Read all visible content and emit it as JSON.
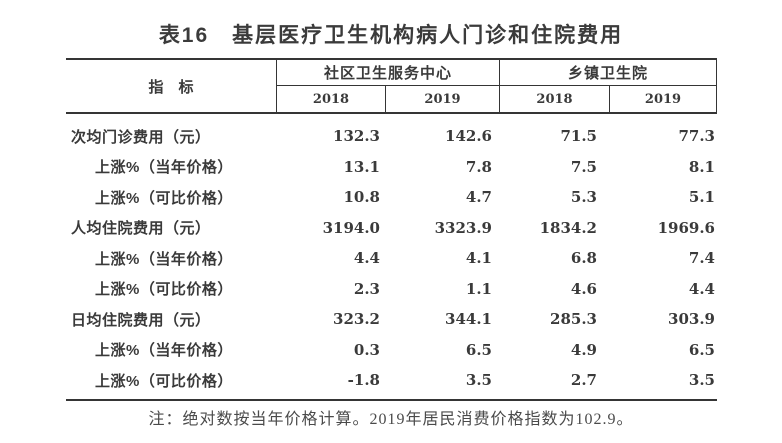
{
  "title": "表16　基层医疗卫生机构病人门诊和住院费用",
  "table": {
    "indicator_header": "指　标",
    "groups": [
      {
        "label": "社区卫生服务中心",
        "years": [
          "2018",
          "2019"
        ]
      },
      {
        "label": "乡镇卫生院",
        "years": [
          "2018",
          "2019"
        ]
      }
    ],
    "rows": [
      {
        "label": "次均门诊费用（元）",
        "indent": false,
        "values": [
          "132.3",
          "142.6",
          "71.5",
          "77.3"
        ]
      },
      {
        "label": "上涨%（当年价格）",
        "indent": true,
        "values": [
          "13.1",
          "7.8",
          "7.5",
          "8.1"
        ]
      },
      {
        "label": "上涨%（可比价格）",
        "indent": true,
        "values": [
          "10.8",
          "4.7",
          "5.3",
          "5.1"
        ]
      },
      {
        "label": "人均住院费用（元）",
        "indent": false,
        "values": [
          "3194.0",
          "3323.9",
          "1834.2",
          "1969.6"
        ]
      },
      {
        "label": "上涨%（当年价格）",
        "indent": true,
        "values": [
          "4.4",
          "4.1",
          "6.8",
          "7.4"
        ]
      },
      {
        "label": "上涨%（可比价格）",
        "indent": true,
        "values": [
          "2.3",
          "1.1",
          "4.6",
          "4.4"
        ]
      },
      {
        "label": "日均住院费用（元）",
        "indent": false,
        "values": [
          "323.2",
          "344.1",
          "285.3",
          "303.9"
        ]
      },
      {
        "label": "上涨%（当年价格）",
        "indent": true,
        "values": [
          "0.3",
          "6.5",
          "4.9",
          "6.5"
        ]
      },
      {
        "label": "上涨%（可比价格）",
        "indent": true,
        "values": [
          "-1.8",
          "3.5",
          "2.7",
          "3.5"
        ]
      }
    ]
  },
  "note": "注：绝对数按当年价格计算。2019年居民消费价格指数为102.9。",
  "colors": {
    "text": "#3a3a3a",
    "rule": "#353535",
    "background": "#ffffff"
  }
}
